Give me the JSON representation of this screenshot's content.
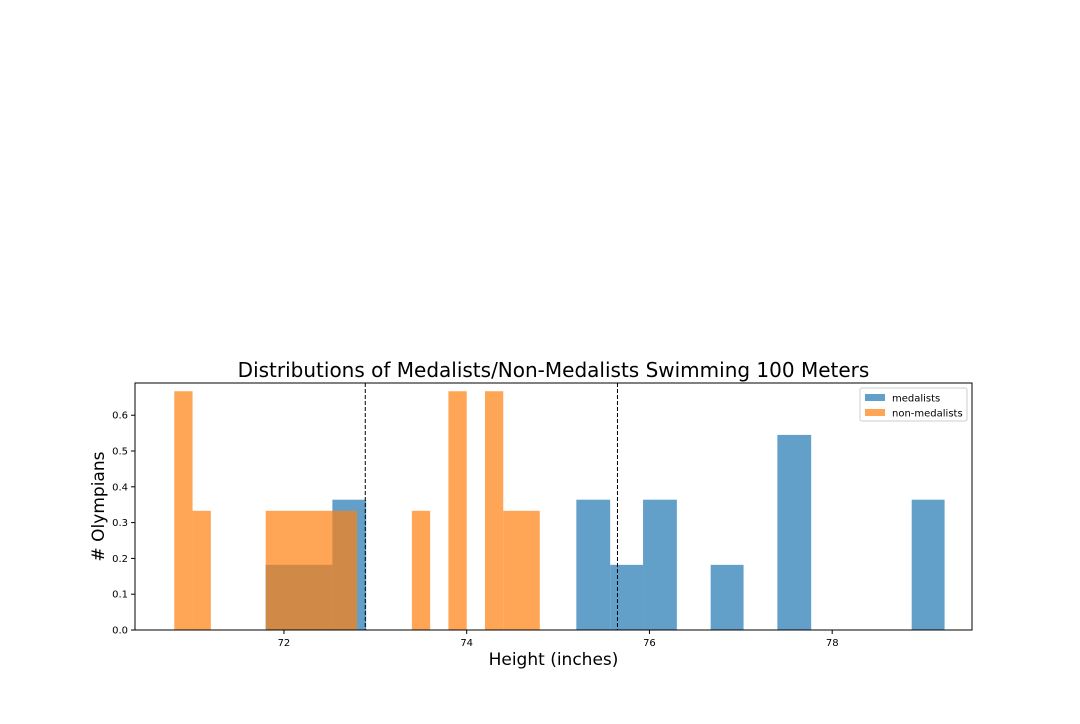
{
  "chart_data": {
    "type": "bar",
    "title": "Distributions of Medalists/Non-Medalists Swimming 100 Meters",
    "xlabel": "Height (inches)",
    "ylabel": "# Olympians",
    "xlim": [
      70.37,
      79.53
    ],
    "ylim": [
      0,
      0.69
    ],
    "xticks": [
      72,
      74,
      76,
      78
    ],
    "yticks": [
      0.0,
      0.1,
      0.2,
      0.3,
      0.4,
      0.5,
      0.6
    ],
    "grid": false,
    "legend": {
      "position": "top-right"
    },
    "vlines": [
      72.89,
      75.65
    ],
    "series": [
      {
        "name": "medalists",
        "color": "#1f77b4",
        "alpha": 0.7,
        "bins": [
          {
            "x0": 71.8,
            "x1": 72.53,
            "y": 0.182
          },
          {
            "x0": 72.53,
            "x1": 72.9,
            "y": 0.364
          },
          {
            "x0": 75.2,
            "x1": 75.57,
            "y": 0.364
          },
          {
            "x0": 75.57,
            "x1": 75.93,
            "y": 0.182
          },
          {
            "x0": 75.93,
            "x1": 76.3,
            "y": 0.364
          },
          {
            "x0": 76.67,
            "x1": 77.03,
            "y": 0.182
          },
          {
            "x0": 77.4,
            "x1": 77.77,
            "y": 0.545
          },
          {
            "x0": 78.87,
            "x1": 79.23,
            "y": 0.364
          }
        ]
      },
      {
        "name": "non-medalists",
        "color": "#ff7f0e",
        "alpha": 0.7,
        "bins": [
          {
            "x0": 70.8,
            "x1": 71.0,
            "y": 0.667
          },
          {
            "x0": 71.0,
            "x1": 71.2,
            "y": 0.333
          },
          {
            "x0": 71.8,
            "x1": 72.8,
            "y": 0.333
          },
          {
            "x0": 73.4,
            "x1": 73.6,
            "y": 0.333
          },
          {
            "x0": 73.8,
            "x1": 74.0,
            "y": 0.667
          },
          {
            "x0": 74.2,
            "x1": 74.4,
            "y": 0.667
          },
          {
            "x0": 74.4,
            "x1": 74.8,
            "y": 0.333
          }
        ]
      }
    ]
  }
}
